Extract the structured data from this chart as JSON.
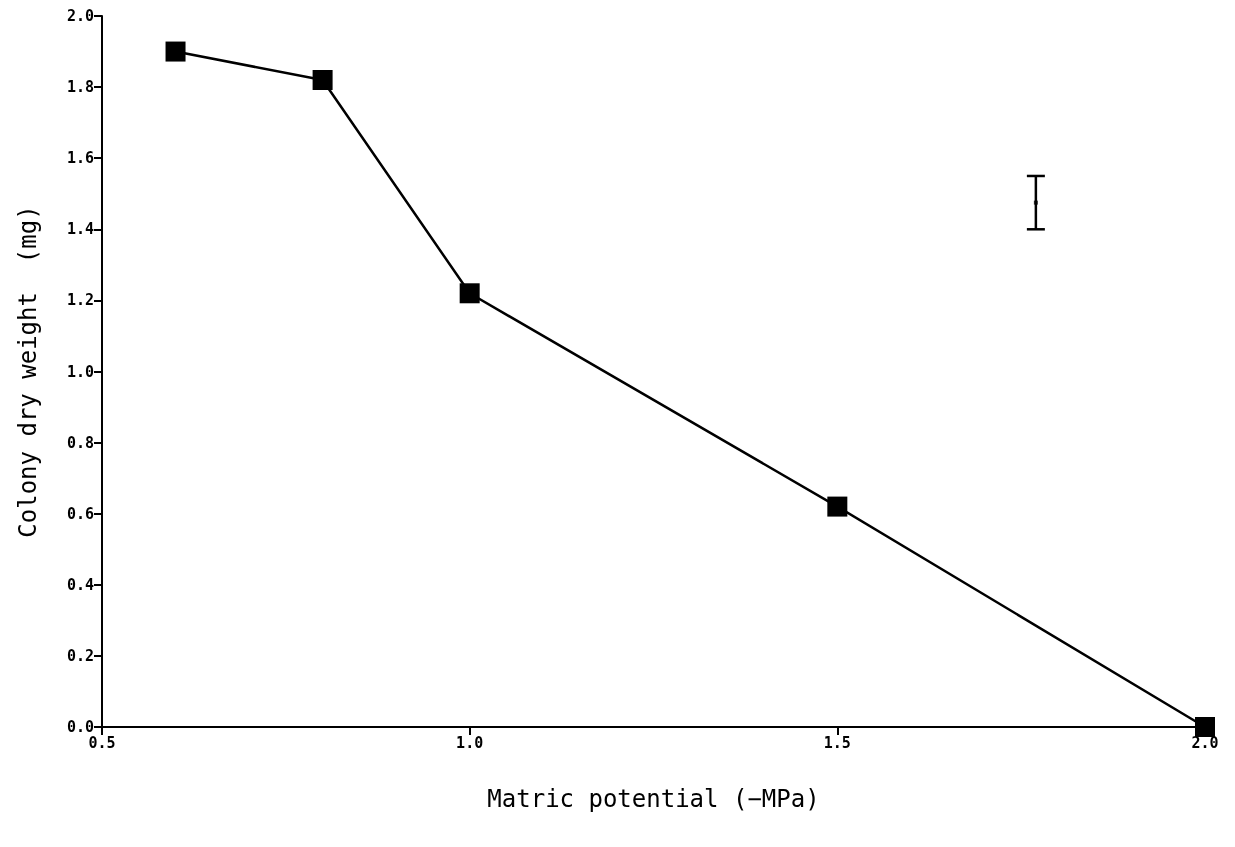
{
  "chart_data": {
    "type": "line",
    "xlabel": "Matric potential (−MPa)",
    "ylabel": "Colony dry weight  (mg)",
    "xlim": [
      0.5,
      2.0
    ],
    "xticks": [
      0.5,
      {
        "value": 1,
        "label": "1.0"
      },
      1.5,
      {
        "value": 2,
        "label": "2.0"
      }
    ],
    "ylim": [
      0,
      2.0
    ],
    "yticks": [
      {
        "value": 0,
        "label": "0.0"
      },
      0.2,
      0.4,
      0.6,
      0.8,
      {
        "value": 1,
        "label": "1.0"
      },
      1.2,
      1.4,
      1.6,
      1.8,
      {
        "value": 2,
        "label": "2.0"
      }
    ],
    "grid": false,
    "marker": "square",
    "line_style": "solid",
    "series": [
      {
        "color": "#000000",
        "x": [
          0.6,
          0.8,
          1.0,
          1.5,
          2.0
        ],
        "values": [
          1.9,
          1.82,
          1.22,
          0.62,
          0
        ]
      },
      {
        "type": "scatter",
        "marker": "square",
        "color": "#000000",
        "x": [
          1.77
        ],
        "values": [
          1.475
        ],
        "errors": [
          [
            1.4,
            1.55
          ]
        ]
      }
    ]
  }
}
